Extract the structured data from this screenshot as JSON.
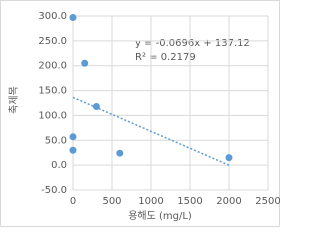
{
  "chart_data": {
    "type": "scatter",
    "x_label": "용해도 (mg/L)",
    "y_label": "축제목",
    "annotations": [
      "y = -0.0696x + 137.12",
      "R² = 0.2179"
    ],
    "x": [
      0,
      150,
      300,
      0,
      0,
      600,
      2000
    ],
    "values": [
      297,
      205,
      118,
      57,
      30,
      24,
      15
    ],
    "color": "#5b9bd5",
    "trendline": true,
    "xlim": [
      0,
      2500
    ],
    "xticks": [
      0,
      500,
      1000,
      1500,
      2000,
      2500
    ],
    "ylim": [
      -50,
      300
    ],
    "yticks": [
      {
        "value": -50,
        "label": "-50.0"
      },
      {
        "value": 0,
        "label": "0.0"
      },
      {
        "value": 50,
        "label": "50.0"
      },
      {
        "value": 100,
        "label": "100.0"
      },
      {
        "value": 150,
        "label": "150.0"
      },
      {
        "value": 200,
        "label": "200.0"
      },
      {
        "value": 250,
        "label": "250.0"
      },
      {
        "value": 300,
        "label": "300.0"
      }
    ],
    "grid": true
  }
}
